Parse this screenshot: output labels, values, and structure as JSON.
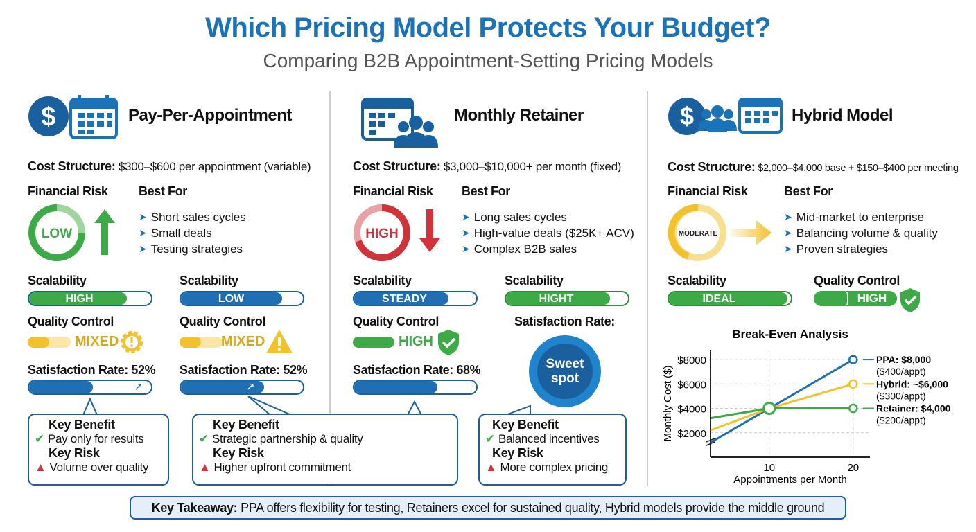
{
  "header": {
    "title": "Which Pricing Model Protects Your Budget?",
    "subtitle": "Comparing B2B Appointment-Setting Pricing Models"
  },
  "colors": {
    "blue": "#1a73b8",
    "green": "#3daa47",
    "yellow": "#f2c12e",
    "red": "#d0343a"
  },
  "labels": {
    "cost": "Cost Structure:",
    "risk": "Financial Risk",
    "best_for": "Best For",
    "scalability": "Scalability",
    "quality": "Quality Control",
    "benefit": "Key Benefit",
    "risk_key": "Key Risk"
  },
  "columns": [
    {
      "title": "Pay-Per-Appointment",
      "icons": [
        "dollar-icon",
        "calendar-icon"
      ],
      "cost": "$300–$600 per appointment (variable)",
      "risk_level": "LOW",
      "best_for": [
        "Short sales cycles",
        "Small deals",
        "Testing strategies"
      ],
      "left": {
        "scalability": {
          "text": "HIGH",
          "fill": 0.8
        },
        "quality": {
          "text": "MIXED",
          "fill": 0.5
        },
        "satisfaction": {
          "label": "Satisfaction Rate: 52%",
          "value": 52
        }
      },
      "right": {
        "scalability": {
          "text": "LOW",
          "fill": 0.83
        },
        "quality": {
          "text": "MIXED",
          "fill": 0.5
        },
        "satisfaction": {
          "label": "Satisfaction Rate: 52%",
          "value": 52
        }
      },
      "benefit": "Pay only for results",
      "risk": "Volume over quality"
    },
    {
      "title": "Monthly Retainer",
      "icons": [
        "calendar-icon",
        "people-icon"
      ],
      "cost": "$3,000–$10,000+ per month (fixed)",
      "risk_level": "HIGH",
      "best_for": [
        "Long sales cycles",
        "High-value deals ($25K+ ACV)",
        "Complex B2B sales"
      ],
      "left": {
        "scalability": {
          "text": "STEADY",
          "fill": 0.77
        },
        "quality": {
          "text": "HIGH",
          "fill": 1
        },
        "satisfaction": {
          "label": "Satisfaction Rate: 68%",
          "value": 68
        }
      },
      "right": {
        "scalability": {
          "text": "HIGHT",
          "fill": 0.85
        },
        "satisfaction": {
          "label": "Satisfaction Rate:",
          "badge": "Sweet spot"
        }
      },
      "benefit": "Strategic partnership & quality",
      "risk": "Higher upfront commitment"
    },
    {
      "title": "Hybrid Model",
      "icons": [
        "dollar-icon",
        "people-icon",
        "calendar-icon"
      ],
      "cost": "$2,000–$4,000 base + $150–$400 per meeting",
      "risk_level": "MODERATE",
      "best_for": [
        "Mid-market to enterprise",
        "Balancing volume & quality",
        "Proven strategies"
      ],
      "left": {
        "scalability": {
          "text": "IDEAL",
          "fill": 0.97
        }
      },
      "right": {
        "quality": {
          "text": "HIGH",
          "fill": 1
        }
      },
      "benefit": "Balanced incentives",
      "risk": "More complex pricing"
    }
  ],
  "takeaway": {
    "label": "Key Takeaway:",
    "text": "PPA offers flexibility for testing, Retainers excel for sustained quality, Hybrid models provide the middle ground"
  },
  "chart_data": {
    "type": "line",
    "title": "Break-Even Analysis",
    "xlabel": "Appointments per Month",
    "ylabel": "Monthly Cost ($)",
    "xlim": [
      3,
      22
    ],
    "ylim": [
      0,
      8800
    ],
    "axis_break": true,
    "grid": true,
    "x_ticks": [
      "10",
      "20"
    ],
    "y_ticks": [
      "$2000",
      "$4000",
      "$6000",
      "$8000"
    ],
    "x_tick_values": [
      10,
      20
    ],
    "y_tick_values": [
      2000,
      4000,
      6000,
      8000
    ],
    "series": [
      {
        "name": "PPA: $8,000",
        "note": "($400/appt)",
        "color": "#1f6fb2",
        "x": [
          3,
          10,
          20
        ],
        "y": [
          1200,
          4000,
          8000
        ]
      },
      {
        "name": "Hybrid: ~$6,000",
        "note": "($300/appt)",
        "color": "#f2c12e",
        "x": [
          3,
          10,
          20
        ],
        "y": [
          2200,
          4000,
          6000
        ]
      },
      {
        "name": "Retainer: $4,000",
        "note": "($200/appt)",
        "color": "#3daa47",
        "x": [
          3,
          10,
          20
        ],
        "y": [
          3200,
          4000,
          4000
        ]
      }
    ]
  }
}
